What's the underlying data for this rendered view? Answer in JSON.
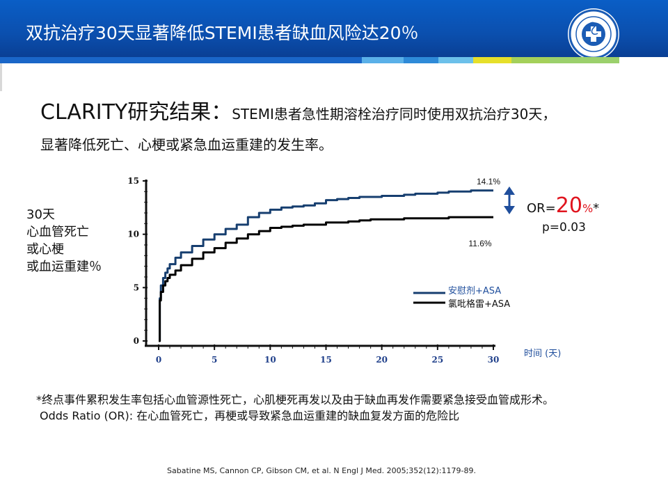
{
  "header": {
    "title": "双抗治疗30天显著降低STEMI患者缺血风险达20％"
  },
  "logo": {
    "icon": "ministry-of-health-seal-icon"
  },
  "intro": {
    "lead": "CLARITY研究结果：",
    "line1_rest": "STEMI患者急性期溶栓治疗同时使用双抗治疗30天，",
    "line2": "显著降低死亡、心梗或紧急血运重建的发生率。"
  },
  "y_axis_label": [
    "30天",
    "心血管死亡",
    "或心梗",
    "或血运重建％"
  ],
  "x_axis_unit": "时间 (天)",
  "odds": {
    "or_prefix": "OR=",
    "or_value": "20",
    "or_suffix": "%",
    "or_star": "*",
    "p_value": "p=0.03"
  },
  "notes": {
    "line1": "*终点事件累积发生率包括心血管源性死亡，心肌梗死再发以及由于缺血再发作需要紧急接受血管成形术。",
    "line2": "Odds Ratio (OR):  在心血管死亡，再梗或导致紧急血运重建的缺血复发方面的危险比"
  },
  "citation": "Sabatine MS, Cannon CP, Gibson CM, et al. N Engl J Med. 2005;352(12):1179-89.",
  "colors": {
    "header_bg": "#0b4fae",
    "placebo_series": "#163e6f",
    "clopidogrel_series": "#000000",
    "or_highlight": "#e0141e",
    "arrow": "#1f4e9c"
  },
  "chart_data": {
    "type": "line",
    "xlabel": "时间 (天)",
    "ylabel": "30天 心血管死亡 或心梗 或血运重建％",
    "xlim": [
      0,
      30
    ],
    "ylim": [
      0,
      15
    ],
    "x_ticks": [
      "0",
      "5",
      "10",
      "15",
      "20",
      "25",
      "30"
    ],
    "y_ticks": [
      "0",
      "5",
      "10",
      "15"
    ],
    "series": [
      {
        "name": "安慰剂+ASA",
        "end_label": "14.1%",
        "color": "#163e6f",
        "x": [
          0,
          0.1,
          0.2,
          0.4,
          0.6,
          0.8,
          1,
          1.5,
          2,
          3,
          4,
          5,
          6,
          7,
          8,
          9,
          10,
          11,
          12,
          13,
          14,
          15,
          16,
          17,
          18,
          19,
          20,
          21,
          22,
          23,
          24,
          25,
          26,
          27,
          28,
          29,
          30
        ],
        "values": [
          0,
          4.0,
          5.2,
          5.9,
          6.4,
          6.8,
          7.2,
          7.8,
          8.3,
          8.9,
          9.5,
          10.0,
          10.5,
          10.9,
          11.6,
          12.0,
          12.3,
          12.5,
          12.6,
          12.7,
          12.9,
          13.2,
          13.3,
          13.4,
          13.5,
          13.5,
          13.6,
          13.6,
          13.7,
          13.8,
          13.8,
          13.9,
          14.0,
          14.0,
          14.1,
          14.1,
          14.1
        ]
      },
      {
        "name": "氯吡格雷+ASA",
        "end_label": "11.6%",
        "color": "#000000",
        "x": [
          0,
          0.1,
          0.2,
          0.4,
          0.6,
          0.8,
          1,
          1.5,
          2,
          3,
          4,
          5,
          6,
          7,
          8,
          9,
          10,
          11,
          12,
          13,
          14,
          15,
          16,
          17,
          18,
          19,
          20,
          21,
          22,
          23,
          24,
          25,
          26,
          27,
          28,
          29,
          30
        ],
        "values": [
          0,
          3.8,
          4.6,
          5.2,
          5.6,
          5.9,
          6.2,
          6.6,
          7.1,
          7.7,
          8.3,
          8.7,
          9.2,
          9.6,
          10.0,
          10.3,
          10.6,
          10.7,
          10.8,
          10.9,
          10.9,
          11.1,
          11.1,
          11.2,
          11.3,
          11.4,
          11.4,
          11.4,
          11.5,
          11.5,
          11.5,
          11.5,
          11.6,
          11.6,
          11.6,
          11.6,
          11.6
        ]
      }
    ],
    "annotation": "OR=20%* p=0.03"
  }
}
